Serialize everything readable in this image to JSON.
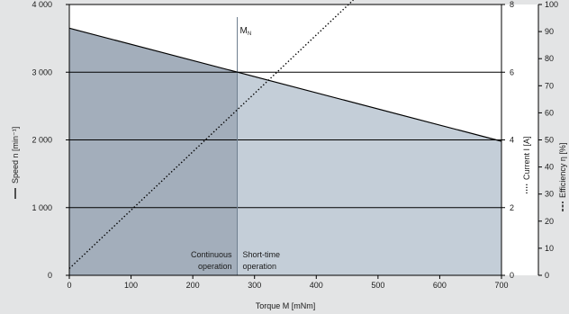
{
  "chart_data": {
    "type": "line",
    "xlabel": "Torque M [mNm]",
    "xlim": [
      0,
      700
    ],
    "x_ticks": [
      "0",
      "100",
      "200",
      "300",
      "400",
      "500",
      "600",
      "700"
    ],
    "ylabel_left": "Speed n [min⁻¹]",
    "ylim_left": [
      0,
      4000
    ],
    "left_ticks": [
      "0",
      "1 000",
      "2 000",
      "3 000",
      "4 000"
    ],
    "ylabel_right1": "Current I [A]",
    "ylim_right1": [
      0,
      8
    ],
    "right1_ticks": [
      "0",
      "2",
      "4",
      "6",
      "8"
    ],
    "ylabel_right2": "Efficiency η [%]",
    "ylim_right2": [
      0,
      100
    ],
    "right2_ticks": [
      "0",
      "10",
      "20",
      "30",
      "40",
      "50",
      "60",
      "70",
      "80",
      "90",
      "100"
    ],
    "grid": "horizontal",
    "series": [
      {
        "name": "Speed n",
        "axis": "left",
        "style": "solid",
        "x": [
          0,
          700
        ],
        "y": [
          3650,
          1980
        ]
      },
      {
        "name": "Current I",
        "axis": "right1",
        "style": "dotted",
        "x": [
          0,
          460
        ],
        "y": [
          0.2,
          8.4
        ]
      }
    ],
    "nominal_torque": 272,
    "nominal_label_main": "M",
    "nominal_label_sub": "N",
    "regions": [
      {
        "label_line1": "Continuous",
        "label_line2": "operation",
        "from": 0,
        "to": 272,
        "color": "#a3aebb"
      },
      {
        "label_line1": "Short-time",
        "label_line2": "operation",
        "from": 272,
        "to": 700,
        "color": "#c4ced8"
      }
    ],
    "colors": {
      "frame": "#e3e4e5",
      "plot_bg": "#ffffff",
      "line": "#000000"
    }
  }
}
